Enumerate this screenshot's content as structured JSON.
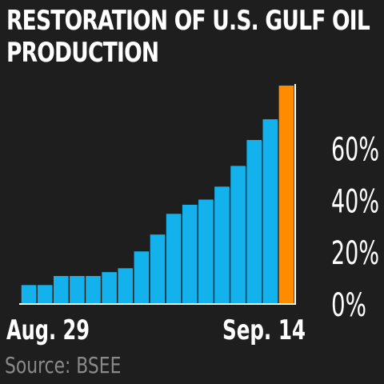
{
  "title": "RESTORATION OF U.S. GULF OIL PRODUCTION",
  "source": "Source: BSEE",
  "chart_data": {
    "type": "bar",
    "categories": [
      "Aug. 29",
      "",
      "",
      "",
      "",
      "",
      "",
      "",
      "",
      "",
      "",
      "",
      "",
      "",
      "",
      "",
      "Sep. 14"
    ],
    "x_tick_labels": [
      "Aug. 29",
      "Sep. 14"
    ],
    "values": [
      7,
      7,
      10.5,
      10.5,
      10.5,
      12,
      13.5,
      20,
      26.5,
      34.5,
      38,
      40,
      45,
      53,
      63,
      71,
      84
    ],
    "unit": "%",
    "ylim": [
      0,
      84
    ],
    "yticks": [
      0,
      20,
      40,
      60
    ],
    "ytick_labels": [
      "0%",
      "20%",
      "40%",
      "60%"
    ],
    "y_axis_position": "right",
    "grid": false,
    "colors": {
      "bar": "#13b2ec",
      "highlight": "#ff8c00",
      "background": "#1e1e1e",
      "axis": "#ffffff"
    },
    "highlight_index": 16
  }
}
